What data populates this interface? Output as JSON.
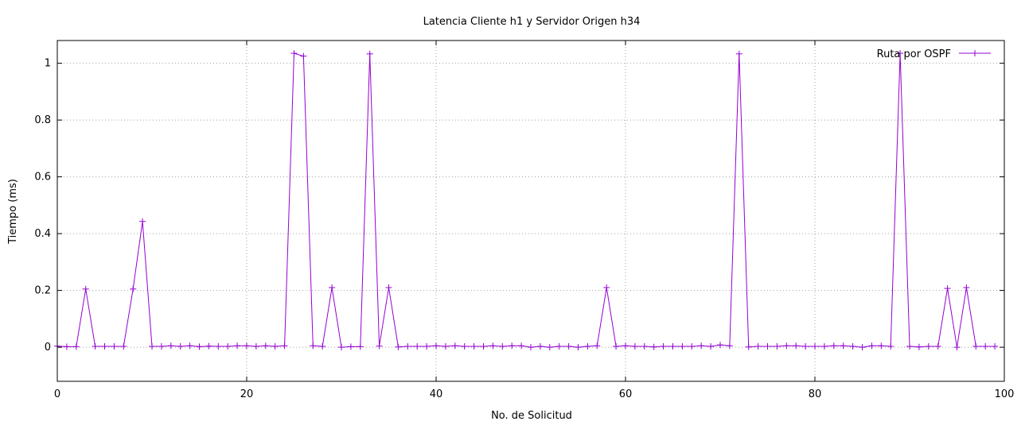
{
  "chart_data": {
    "type": "line",
    "title": "Latencia Cliente h1 y Servidor Origen h34",
    "xlabel": "No. de Solicitud",
    "ylabel": "Tiempo (ms)",
    "xlim": [
      0,
      100
    ],
    "ylim": [
      -0.12,
      1.08
    ],
    "xticks": [
      0,
      20,
      40,
      60,
      80,
      100
    ],
    "yticks": [
      0,
      0.2,
      0.4,
      0.6,
      0.8,
      1
    ],
    "ytick_labels": [
      "0",
      "0.2",
      "0.4",
      "0.6",
      "0.8",
      "1"
    ],
    "grid": true,
    "legend_position": "top-right",
    "series": [
      {
        "name": "Ruta por OSPF",
        "color": "#9400d3",
        "x": [
          0,
          1,
          2,
          3,
          4,
          5,
          6,
          7,
          8,
          9,
          10,
          11,
          12,
          13,
          14,
          15,
          16,
          17,
          18,
          19,
          20,
          21,
          22,
          23,
          24,
          25,
          26,
          27,
          28,
          29,
          30,
          31,
          32,
          33,
          34,
          35,
          36,
          37,
          38,
          39,
          40,
          41,
          42,
          43,
          44,
          45,
          46,
          47,
          48,
          49,
          50,
          51,
          52,
          53,
          54,
          55,
          56,
          57,
          58,
          59,
          60,
          61,
          62,
          63,
          64,
          65,
          66,
          67,
          68,
          69,
          70,
          71,
          72,
          73,
          74,
          75,
          76,
          77,
          78,
          79,
          80,
          81,
          82,
          83,
          84,
          85,
          86,
          87,
          88,
          89,
          90,
          91,
          92,
          93,
          94,
          95,
          96,
          97,
          98,
          99
        ],
        "values": [
          0.004,
          0.002,
          0.002,
          0.205,
          0.003,
          0.003,
          0.003,
          0.003,
          0.205,
          0.443,
          0.003,
          0.003,
          0.005,
          0.003,
          0.005,
          0.002,
          0.004,
          0.003,
          0.003,
          0.005,
          0.005,
          0.003,
          0.005,
          0.003,
          0.005,
          1.035,
          1.025,
          0.005,
          0.003,
          0.21,
          0.0,
          0.002,
          0.002,
          1.033,
          0.004,
          0.21,
          0.001,
          0.003,
          0.003,
          0.003,
          0.005,
          0.003,
          0.005,
          0.003,
          0.003,
          0.003,
          0.005,
          0.003,
          0.005,
          0.005,
          0.0,
          0.003,
          0.0,
          0.003,
          0.003,
          0.0,
          0.003,
          0.005,
          0.21,
          0.003,
          0.005,
          0.003,
          0.003,
          0.001,
          0.003,
          0.003,
          0.003,
          0.003,
          0.005,
          0.003,
          0.008,
          0.005,
          1.033,
          0.001,
          0.003,
          0.003,
          0.003,
          0.005,
          0.005,
          0.003,
          0.003,
          0.003,
          0.005,
          0.005,
          0.003,
          0.0,
          0.005,
          0.005,
          0.003,
          1.035,
          0.003,
          0.001,
          0.003,
          0.003,
          0.207,
          0.0,
          0.21,
          0.003,
          0.003,
          0.003
        ]
      }
    ]
  }
}
